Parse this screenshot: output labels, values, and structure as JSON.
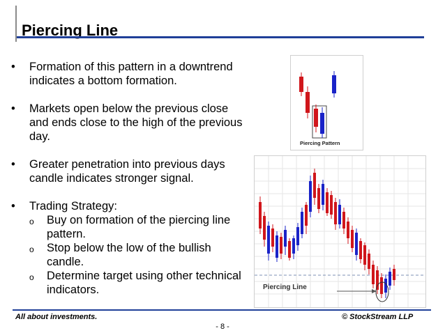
{
  "slide": {
    "title": "Piercing Line",
    "bullets": [
      {
        "text": "Formation of this pattern in a downtrend indicates a bottom formation."
      },
      {
        "text": "Markets open below the previous close and ends close to the high of the previous day."
      },
      {
        "text": "Greater penetration into previous days candle indicates stronger signal."
      },
      {
        "text": "Trading Strategy:"
      }
    ],
    "sub_bullets": [
      "Buy on formation of the piercing line pattern.",
      "Stop below the low of the bullish candle.",
      "Determine target using other technical indicators."
    ],
    "bullet_symbol": "•",
    "sub_bullet_symbol": "o"
  },
  "figure1": {
    "caption": "Piercing Pattern"
  },
  "figure2": {
    "label": "Piercing Line"
  },
  "footer": {
    "left": "All about investments.",
    "right": "© StockStream LLP",
    "page": "- 8 -"
  },
  "colors": {
    "accent": "#1f3f98",
    "bull": "#1a23c8",
    "bear": "#d0161b"
  }
}
